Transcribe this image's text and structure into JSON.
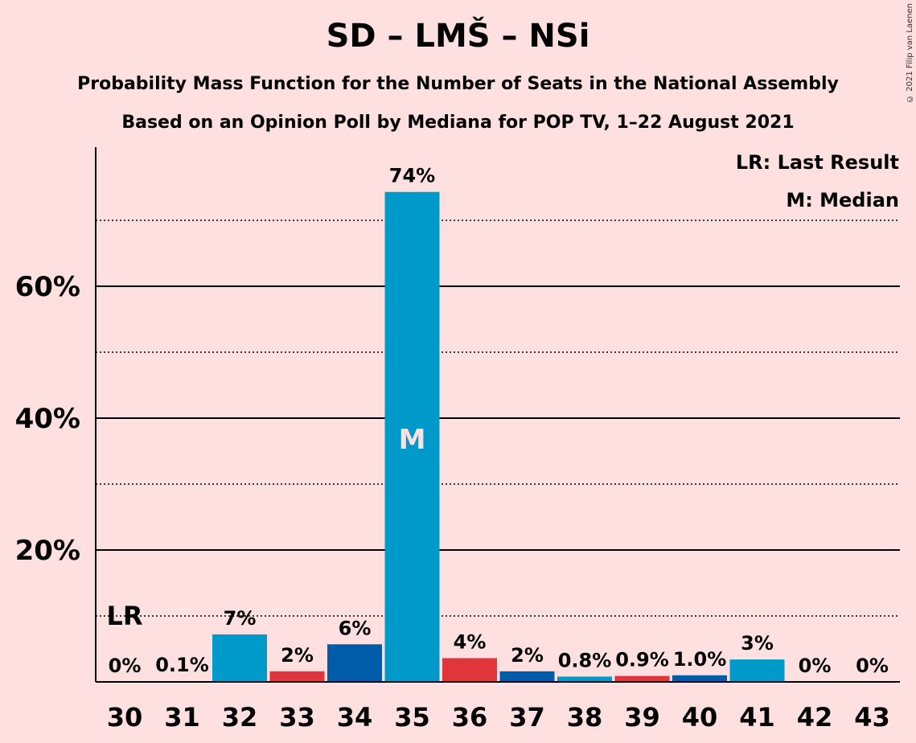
{
  "header": {
    "title": "SD – LMŠ – NSi",
    "subtitle_line1": "Probability Mass Function for the Number of Seats in the National Assembly",
    "subtitle_line2": "Based on an Opinion Poll by Mediana for POP TV, 1–22 August 2021"
  },
  "copyright": "© 2021 Filip van Laenen",
  "legend": {
    "last_result": "LR: Last Result",
    "median": "M: Median"
  },
  "markers": {
    "last_result_label": "LR",
    "last_result_seat": 30,
    "median_label": "M",
    "median_seat": 35
  },
  "colors": {
    "background": "#FFE0E0",
    "sd": "#009ACA",
    "lms": "#E0353B",
    "nsi": "#005BA9"
  },
  "chart_data": {
    "type": "bar",
    "title": "SD – LMŠ – NSi",
    "xlabel": "",
    "ylabel": "",
    "ylim": [
      0,
      80
    ],
    "yticks": [
      20,
      40,
      60
    ],
    "ytick_labels": [
      "20%",
      "40%",
      "60%"
    ],
    "minor_gridlines": [
      10,
      30,
      50,
      70
    ],
    "categories": [
      "30",
      "31",
      "32",
      "33",
      "34",
      "35",
      "36",
      "37",
      "38",
      "39",
      "40",
      "41",
      "42",
      "43"
    ],
    "values": [
      0,
      0.1,
      7.2,
      1.6,
      5.7,
      74.3,
      3.6,
      1.6,
      0.8,
      0.9,
      1.0,
      3.4,
      0,
      0
    ],
    "value_labels": [
      "0%",
      "0.1%",
      "7%",
      "2%",
      "6%",
      "74%",
      "4%",
      "2%",
      "0.8%",
      "0.9%",
      "1.0%",
      "3%",
      "0%",
      "0%"
    ],
    "bar_colors": [
      "#009ACA",
      "#005BA9",
      "#009ACA",
      "#E0353B",
      "#005BA9",
      "#009ACA",
      "#E0353B",
      "#005BA9",
      "#009ACA",
      "#E0353B",
      "#005BA9",
      "#009ACA",
      "#009ACA",
      "#009ACA"
    ],
    "grid": true
  }
}
